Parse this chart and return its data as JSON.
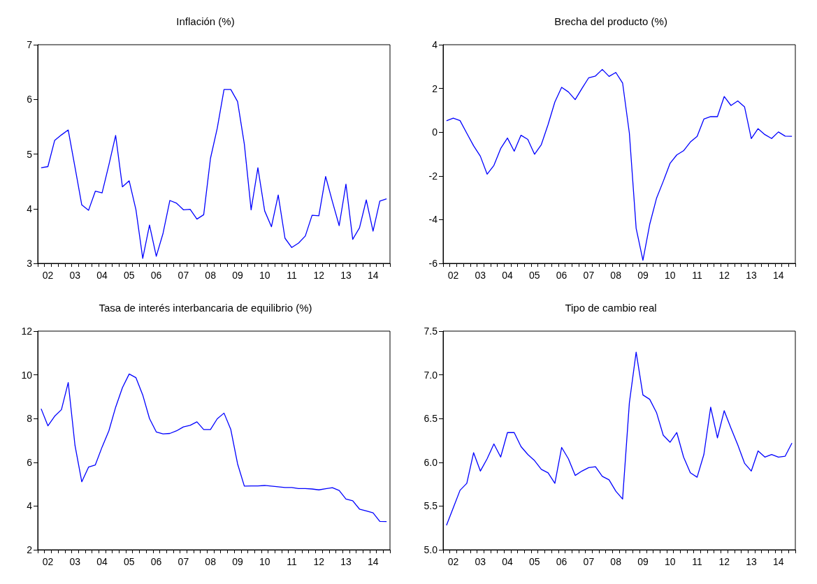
{
  "chart_data": [
    {
      "type": "line",
      "title": "Inflación (%)",
      "categories": [
        null,
        "02",
        null,
        null,
        null,
        "03",
        null,
        null,
        null,
        "04",
        null,
        null,
        null,
        "05",
        null,
        null,
        null,
        "06",
        null,
        null,
        null,
        "07",
        null,
        null,
        null,
        "08",
        null,
        null,
        null,
        "09",
        null,
        null,
        null,
        "10",
        null,
        null,
        null,
        "11",
        null,
        null,
        null,
        "12",
        null,
        null,
        null,
        "13",
        null,
        null,
        null,
        "14",
        null,
        null
      ],
      "color": "#0000ff",
      "ylim": [
        3,
        7
      ],
      "yticks": [
        3,
        4,
        5,
        6,
        7
      ],
      "grid": false,
      "values": [
        4.75,
        4.77,
        5.25,
        5.35,
        5.44,
        4.76,
        4.07,
        3.97,
        4.32,
        4.29,
        4.8,
        5.34,
        4.4,
        4.51,
        3.98,
        3.09,
        3.7,
        3.13,
        3.55,
        4.15,
        4.1,
        3.98,
        3.99,
        3.81,
        3.89,
        4.92,
        5.47,
        6.18,
        6.18,
        5.96,
        5.18,
        3.98,
        4.75,
        3.96,
        3.67,
        4.25,
        3.46,
        3.29,
        3.37,
        3.5,
        3.88,
        3.87,
        4.59,
        4.13,
        3.69,
        4.45,
        3.44,
        3.65,
        4.16,
        3.59,
        4.14,
        4.18
      ]
    },
    {
      "type": "line",
      "title": "Brecha del producto (%)",
      "categories": [
        null,
        "02",
        null,
        null,
        null,
        "03",
        null,
        null,
        null,
        "04",
        null,
        null,
        null,
        "05",
        null,
        null,
        null,
        "06",
        null,
        null,
        null,
        "07",
        null,
        null,
        null,
        "08",
        null,
        null,
        null,
        "09",
        null,
        null,
        null,
        "10",
        null,
        null,
        null,
        "11",
        null,
        null,
        null,
        "12",
        null,
        null,
        null,
        "13",
        null,
        null,
        null,
        "14",
        null,
        null
      ],
      "color": "#0000ff",
      "ylim": [
        -6,
        4
      ],
      "yticks": [
        -6,
        -4,
        -2,
        0,
        2,
        4
      ],
      "grid": false,
      "values": [
        0.52,
        0.64,
        0.53,
        -0.05,
        -0.62,
        -1.1,
        -1.92,
        -1.52,
        -0.75,
        -0.27,
        -0.87,
        -0.14,
        -0.33,
        -1.01,
        -0.57,
        0.35,
        1.38,
        2.05,
        1.84,
        1.49,
        2,
        2.49,
        2.57,
        2.87,
        2.55,
        2.73,
        2.25,
        -0.05,
        -4.4,
        -5.86,
        -4.22,
        -3.03,
        -2.25,
        -1.43,
        -1.04,
        -0.85,
        -0.45,
        -0.19,
        0.6,
        0.71,
        0.71,
        1.63,
        1.22,
        1.43,
        1.16,
        -0.29,
        0.16,
        -0.11,
        -0.29,
        0.01,
        -0.18,
        -0.19
      ]
    },
    {
      "type": "line",
      "title": "Tasa de interés interbancaria de equilibrio (%)",
      "categories": [
        null,
        "02",
        null,
        null,
        null,
        "03",
        null,
        null,
        null,
        "04",
        null,
        null,
        null,
        "05",
        null,
        null,
        null,
        "06",
        null,
        null,
        null,
        "07",
        null,
        null,
        null,
        "08",
        null,
        null,
        null,
        "09",
        null,
        null,
        null,
        "10",
        null,
        null,
        null,
        "11",
        null,
        null,
        null,
        "12",
        null,
        null,
        null,
        "13",
        null,
        null,
        null,
        "14",
        null,
        null
      ],
      "color": "#0000ff",
      "ylim": [
        2,
        12
      ],
      "yticks": [
        2,
        4,
        6,
        8,
        10,
        12
      ],
      "grid": false,
      "values": [
        8.45,
        7.67,
        8.11,
        8.41,
        9.65,
        6.77,
        5.11,
        5.78,
        5.88,
        6.7,
        7.44,
        8.52,
        9.41,
        10.04,
        9.87,
        9.08,
        8,
        7.39,
        7.3,
        7.32,
        7.44,
        7.62,
        7.69,
        7.85,
        7.5,
        7.5,
        7.99,
        8.25,
        7.5,
        5.93,
        4.91,
        4.92,
        4.92,
        4.94,
        4.91,
        4.88,
        4.85,
        4.85,
        4.8,
        4.8,
        4.78,
        4.74,
        4.79,
        4.84,
        4.71,
        4.32,
        4.24,
        3.86,
        3.78,
        3.69,
        3.3,
        3.29
      ]
    },
    {
      "type": "line",
      "title": "Tipo de cambio real",
      "categories": [
        null,
        "02",
        null,
        null,
        null,
        "03",
        null,
        null,
        null,
        "04",
        null,
        null,
        null,
        "05",
        null,
        null,
        null,
        "06",
        null,
        null,
        null,
        "07",
        null,
        null,
        null,
        "08",
        null,
        null,
        null,
        "09",
        null,
        null,
        null,
        "10",
        null,
        null,
        null,
        "11",
        null,
        null,
        null,
        "12",
        null,
        null,
        null,
        "13",
        null,
        null,
        null,
        "14",
        null,
        null
      ],
      "color": "#0000ff",
      "ylim": [
        5,
        7.5
      ],
      "yticks": [
        {
          "value": 5,
          "label": "5.0"
        },
        {
          "value": 5.5,
          "label": "5.5"
        },
        {
          "value": 6,
          "label": "6.0"
        },
        {
          "value": 6.5,
          "label": "6.5"
        },
        {
          "value": 7,
          "label": "7.0"
        },
        {
          "value": 7.5,
          "label": "7.5"
        }
      ],
      "grid": false,
      "values": [
        5.28,
        5.48,
        5.68,
        5.76,
        6.11,
        5.9,
        6.04,
        6.21,
        6.06,
        6.34,
        6.34,
        6.18,
        6.09,
        6.02,
        5.92,
        5.88,
        5.76,
        6.17,
        6.04,
        5.85,
        5.9,
        5.94,
        5.95,
        5.84,
        5.8,
        5.67,
        5.58,
        6.68,
        7.26,
        6.77,
        6.72,
        6.57,
        6.31,
        6.23,
        6.34,
        6.06,
        5.88,
        5.83,
        6.09,
        6.63,
        6.28,
        6.59,
        6.39,
        6.2,
        5.99,
        5.9,
        6.13,
        6.06,
        6.09,
        6.06,
        6.07,
        6.22
      ]
    }
  ]
}
